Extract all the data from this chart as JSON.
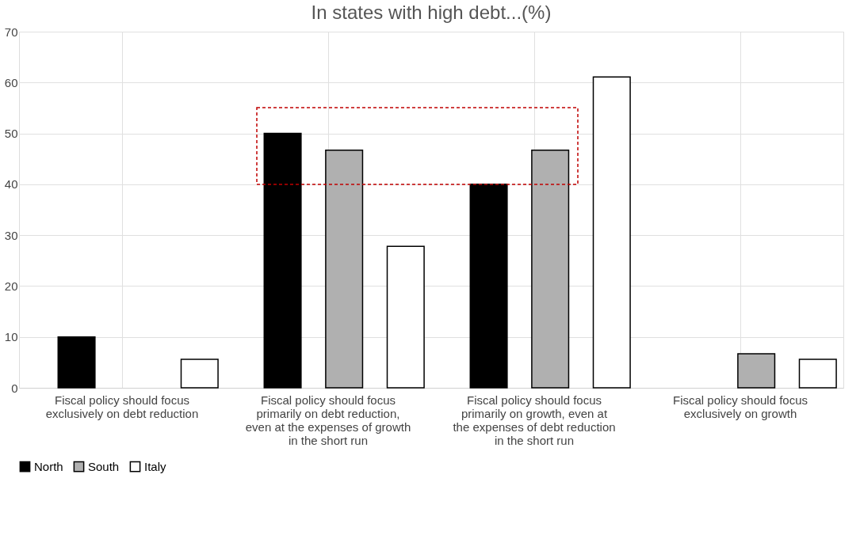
{
  "chart_data": {
    "type": "bar",
    "title": "In states with high debt...(%)",
    "categories": [
      "Fiscal policy should focus exclusively on debt reduction",
      "Fiscal policy should focus primarily on debt reduction, even at the expenses of growth in the short run",
      "Fiscal policy should focus primarily on growth, even at the expenses of debt reduction in the short run",
      "Fiscal policy should focus exclusively on growth"
    ],
    "series": [
      {
        "name": "North",
        "color": "#000000",
        "values": [
          10,
          50,
          40,
          0
        ]
      },
      {
        "name": "South",
        "color": "#b0b0b0",
        "values": [
          0,
          46.7,
          46.7,
          6.7
        ]
      },
      {
        "name": "Italy",
        "color": "#ffffff",
        "values": [
          5.6,
          27.8,
          61.1,
          5.6
        ]
      }
    ],
    "ylim": [
      0,
      70
    ],
    "yticks": [
      0,
      10,
      20,
      30,
      40,
      50,
      60,
      70
    ],
    "grid": true,
    "legend": "bottom"
  }
}
